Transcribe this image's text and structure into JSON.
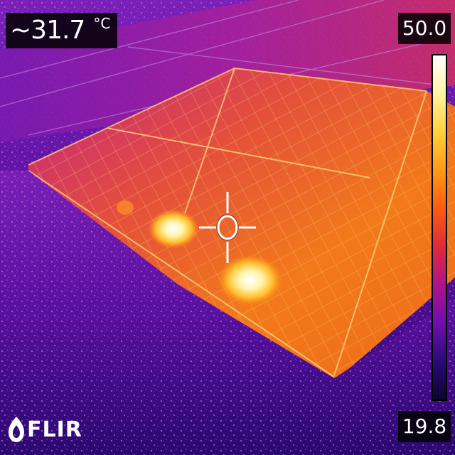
{
  "readout": {
    "spot_value": "~31.7",
    "spot_unit": "°C"
  },
  "scale": {
    "max_label": "50.0",
    "min_label": "19.8",
    "gradient_colors": [
      "#ffffff",
      "#fff3a0",
      "#ffd23a",
      "#ff9a14",
      "#ff5a10",
      "#e02a3a",
      "#b0138a",
      "#6e10b0",
      "#2a0a7a",
      "#0c0430"
    ]
  },
  "brand": {
    "logo_text": "FLIR"
  },
  "crosshair": {
    "icon": "crosshair-icon"
  }
}
